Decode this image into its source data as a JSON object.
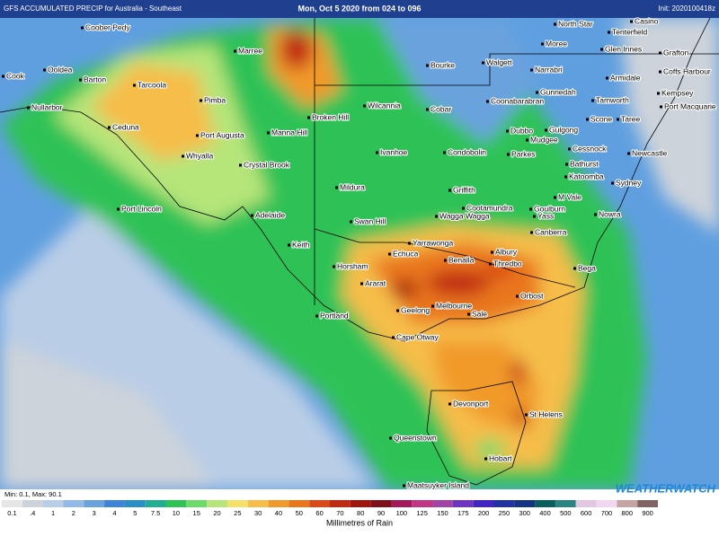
{
  "header": {
    "product": "GFS ACCUMULATED PRECIP for Australia - Southeast",
    "period": "Mon, Oct 5 2020 from 024 to 096",
    "init": "Init: 2020100418z"
  },
  "places": [
    "North Star",
    "Casino",
    "Tenterfield",
    "Coober Pedy",
    "Marree",
    "Bourke",
    "Moree",
    "Glen Innes",
    "Grafton",
    "Walgett",
    "Narrabri",
    "Coffs Harbour",
    "Cook",
    "Ooldea",
    "Barton",
    "Tarcoola",
    "Armidale",
    "Gunnedah",
    "Kempsey",
    "Wilcannia",
    "Cobar",
    "Coonabarabran",
    "Tamworth",
    "Port Macquarie",
    "Nullarbor",
    "Pimba",
    "Broken Hill",
    "Scone",
    "Taree",
    "Gulgong",
    "Dubbo",
    "Ceduna",
    "Port Augusta",
    "Manna Hill",
    "Mudgee",
    "Cessnock",
    "Newcastle",
    "Ivanhoe",
    "Condobolin",
    "Parkes",
    "Whyalla",
    "Bathurst",
    "Crystal Brook",
    "Katoomba",
    "Sydney",
    "Mildura",
    "Griffith",
    "M Vale",
    "Port Lincoln",
    "Cootamundra",
    "Goulburn",
    "Adelaide",
    "Nowra",
    "Wagga Wagga",
    "Yass",
    "Swan Hill",
    "Canberra",
    "Keith",
    "Yarrawonga",
    "Albury",
    "Echuca",
    "Benalla",
    "Thredbo",
    "Horsham",
    "Bega",
    "Ararat",
    "Orbost",
    "Melbourne",
    "Geelong",
    "Sale",
    "Portland",
    "Cape Otway",
    "Devonport",
    "St Helens",
    "Queenstown",
    "Hobart",
    "Maatsuyker Island"
  ],
  "minmax": "Min: 0.1, Max: 90.1",
  "logo": "WEATHERWATCH",
  "legend": {
    "title": "Millimetres of Rain",
    "items": [
      {
        "label": "0.1",
        "color": "#e6e6e6"
      },
      {
        "label": ".4",
        "color": "#cdd3da"
      },
      {
        "label": "1",
        "color": "#b9cde6"
      },
      {
        "label": "2",
        "color": "#93b9e6"
      },
      {
        "label": "3",
        "color": "#6aa2de"
      },
      {
        "label": "4",
        "color": "#3f84d6"
      },
      {
        "label": "5",
        "color": "#2a8fc4"
      },
      {
        "label": "7.5",
        "color": "#21ae93"
      },
      {
        "label": "10",
        "color": "#2ec257"
      },
      {
        "label": "15",
        "color": "#6cdb6a"
      },
      {
        "label": "20",
        "color": "#b6e57a"
      },
      {
        "label": "25",
        "color": "#f5e06a"
      },
      {
        "label": "30",
        "color": "#f6bd4a"
      },
      {
        "label": "40",
        "color": "#f19a2c"
      },
      {
        "label": "50",
        "color": "#e9761a"
      },
      {
        "label": "60",
        "color": "#d94a14"
      },
      {
        "label": "70",
        "color": "#c02a12"
      },
      {
        "label": "80",
        "color": "#a11510"
      },
      {
        "label": "90",
        "color": "#80101a"
      },
      {
        "label": "100",
        "color": "#a3195a"
      },
      {
        "label": "125",
        "color": "#c23484"
      },
      {
        "label": "150",
        "color": "#a244a6"
      },
      {
        "label": "175",
        "color": "#7034c2"
      },
      {
        "label": "200",
        "color": "#4224c2"
      },
      {
        "label": "250",
        "color": "#2232a3"
      },
      {
        "label": "300",
        "color": "#143484"
      },
      {
        "label": "400",
        "color": "#0b5e5e"
      },
      {
        "label": "500",
        "color": "#2a8484"
      },
      {
        "label": "600",
        "color": "#e2c6e2"
      },
      {
        "label": "700",
        "color": "#f2d6f2"
      },
      {
        "label": "800",
        "color": "#c6a4a4"
      },
      {
        "label": "900",
        "color": "#806464"
      }
    ]
  }
}
